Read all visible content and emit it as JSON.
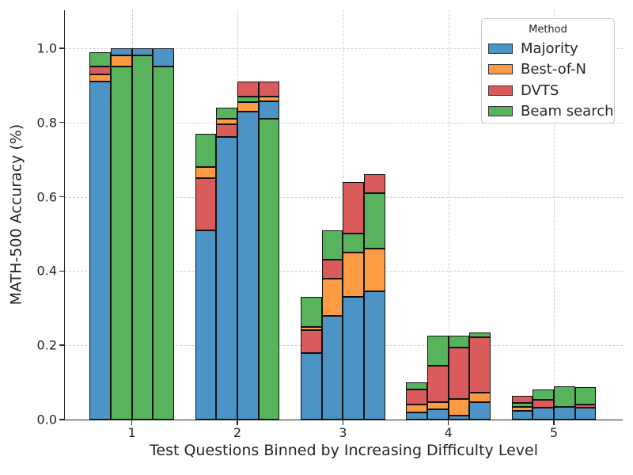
{
  "page": {
    "background": "#ffffff",
    "text_color": "#262626"
  },
  "chart_data": {
    "type": "bar",
    "subtype": "grouped bars, 4 overlaid method bars per bin shown as stacked color segments",
    "title": "",
    "xlabel": "Test Questions Binned by Increasing Difficulty Level",
    "ylabel": "MATH-500 Accuracy (%)",
    "x_axis": {
      "ticks": [
        "1",
        "2",
        "3",
        "4",
        "5"
      ]
    },
    "y_axis": {
      "lim": [
        0,
        1.102
      ],
      "ticks": [
        {
          "label": "0.0",
          "value": 0.0
        },
        {
          "label": "0.2",
          "value": 0.2
        },
        {
          "label": "0.4",
          "value": 0.4
        },
        {
          "label": "0.6",
          "value": 0.6
        },
        {
          "label": "0.8",
          "value": 0.8
        },
        {
          "label": "1.0",
          "value": 1.0
        }
      ]
    },
    "grid": {
      "show": true,
      "style": "dashed",
      "color": "#cfcfcf",
      "axes": "both"
    },
    "bar_edge_color": "#111111",
    "legend": {
      "title": "Method",
      "position": "upper-right",
      "entries": [
        {
          "label": "Majority",
          "color": "#4C94C6"
        },
        {
          "label": "Best-of-N",
          "color": "#FD9B44"
        },
        {
          "label": "DVTS",
          "color": "#DA5B5B"
        },
        {
          "label": "Beam search",
          "color": "#57B35C"
        }
      ]
    },
    "groups": [
      {
        "bin": "1",
        "bars": [
          {
            "segments": [
              {
                "method": "Majority",
                "from": 0,
                "to": 0.91
              },
              {
                "method": "Best-of-N",
                "from": 0.91,
                "to": 0.93
              },
              {
                "method": "DVTS",
                "from": 0.93,
                "to": 0.95
              },
              {
                "method": "Beam search",
                "from": 0.95,
                "to": 0.99
              }
            ]
          },
          {
            "segments": [
              {
                "method": "Beam search",
                "from": 0,
                "to": 0.95
              },
              {
                "method": "Best-of-N",
                "from": 0.95,
                "to": 0.98
              },
              {
                "method": "Majority",
                "from": 0.98,
                "to": 1.0
              }
            ]
          },
          {
            "segments": [
              {
                "method": "Beam search",
                "from": 0,
                "to": 0.98
              },
              {
                "method": "Majority",
                "from": 0.98,
                "to": 1.0
              }
            ]
          },
          {
            "segments": [
              {
                "method": "Beam search",
                "from": 0,
                "to": 0.95
              },
              {
                "method": "Majority",
                "from": 0.95,
                "to": 1.0
              }
            ]
          }
        ]
      },
      {
        "bin": "2",
        "bars": [
          {
            "segments": [
              {
                "method": "Majority",
                "from": 0,
                "to": 0.51
              },
              {
                "method": "DVTS",
                "from": 0.51,
                "to": 0.65
              },
              {
                "method": "Best-of-N",
                "from": 0.65,
                "to": 0.68
              },
              {
                "method": "Beam search",
                "from": 0.68,
                "to": 0.77
              }
            ]
          },
          {
            "segments": [
              {
                "method": "Majority",
                "from": 0,
                "to": 0.76
              },
              {
                "method": "DVTS",
                "from": 0.76,
                "to": 0.795
              },
              {
                "method": "Best-of-N",
                "from": 0.795,
                "to": 0.81
              },
              {
                "method": "Beam search",
                "from": 0.81,
                "to": 0.84
              }
            ]
          },
          {
            "segments": [
              {
                "method": "Majority",
                "from": 0,
                "to": 0.83
              },
              {
                "method": "Best-of-N",
                "from": 0.83,
                "to": 0.855
              },
              {
                "method": "Beam search",
                "from": 0.855,
                "to": 0.87
              },
              {
                "method": "DVTS",
                "from": 0.87,
                "to": 0.91
              }
            ]
          },
          {
            "segments": [
              {
                "method": "Beam search",
                "from": 0,
                "to": 0.81
              },
              {
                "method": "Majority",
                "from": 0.81,
                "to": 0.857
              },
              {
                "method": "Best-of-N",
                "from": 0.857,
                "to": 0.87
              },
              {
                "method": "DVTS",
                "from": 0.87,
                "to": 0.91
              }
            ]
          }
        ]
      },
      {
        "bin": "3",
        "bars": [
          {
            "segments": [
              {
                "method": "Majority",
                "from": 0,
                "to": 0.18
              },
              {
                "method": "DVTS",
                "from": 0.18,
                "to": 0.24
              },
              {
                "method": "Best-of-N",
                "from": 0.24,
                "to": 0.25
              },
              {
                "method": "Beam search",
                "from": 0.25,
                "to": 0.33
              }
            ]
          },
          {
            "segments": [
              {
                "method": "Majority",
                "from": 0,
                "to": 0.28
              },
              {
                "method": "Best-of-N",
                "from": 0.28,
                "to": 0.38
              },
              {
                "method": "DVTS",
                "from": 0.38,
                "to": 0.43
              },
              {
                "method": "Beam search",
                "from": 0.43,
                "to": 0.51
              }
            ]
          },
          {
            "segments": [
              {
                "method": "Majority",
                "from": 0,
                "to": 0.33
              },
              {
                "method": "Best-of-N",
                "from": 0.33,
                "to": 0.45
              },
              {
                "method": "Beam search",
                "from": 0.45,
                "to": 0.5
              },
              {
                "method": "DVTS",
                "from": 0.5,
                "to": 0.64
              }
            ]
          },
          {
            "segments": [
              {
                "method": "Majority",
                "from": 0,
                "to": 0.345
              },
              {
                "method": "Best-of-N",
                "from": 0.345,
                "to": 0.46
              },
              {
                "method": "Beam search",
                "from": 0.46,
                "to": 0.61
              },
              {
                "method": "DVTS",
                "from": 0.61,
                "to": 0.66
              }
            ]
          }
        ]
      },
      {
        "bin": "4",
        "bars": [
          {
            "segments": [
              {
                "method": "Majority",
                "from": 0,
                "to": 0.02
              },
              {
                "method": "Best-of-N",
                "from": 0.02,
                "to": 0.04
              },
              {
                "method": "DVTS",
                "from": 0.04,
                "to": 0.08
              },
              {
                "method": "Beam search",
                "from": 0.08,
                "to": 0.1
              }
            ]
          },
          {
            "segments": [
              {
                "method": "Majority",
                "from": 0,
                "to": 0.027
              },
              {
                "method": "Best-of-N",
                "from": 0.027,
                "to": 0.046
              },
              {
                "method": "DVTS",
                "from": 0.046,
                "to": 0.146
              },
              {
                "method": "Beam search",
                "from": 0.146,
                "to": 0.225
              }
            ]
          },
          {
            "segments": [
              {
                "method": "Majority",
                "from": 0,
                "to": 0.011
              },
              {
                "method": "Best-of-N",
                "from": 0.011,
                "to": 0.055
              },
              {
                "method": "DVTS",
                "from": 0.055,
                "to": 0.193
              },
              {
                "method": "Beam search",
                "from": 0.193,
                "to": 0.225
              }
            ]
          },
          {
            "segments": [
              {
                "method": "Majority",
                "from": 0,
                "to": 0.046
              },
              {
                "method": "Best-of-N",
                "from": 0.046,
                "to": 0.072
              },
              {
                "method": "DVTS",
                "from": 0.072,
                "to": 0.222
              },
              {
                "method": "Beam search",
                "from": 0.222,
                "to": 0.235
              }
            ]
          }
        ]
      },
      {
        "bin": "5",
        "bars": [
          {
            "segments": [
              {
                "method": "Majority",
                "from": 0,
                "to": 0.023
              },
              {
                "method": "Best-of-N",
                "from": 0.023,
                "to": 0.034
              },
              {
                "method": "Beam search",
                "from": 0.034,
                "to": 0.045
              },
              {
                "method": "DVTS",
                "from": 0.045,
                "to": 0.064
              }
            ]
          },
          {
            "segments": [
              {
                "method": "Majority",
                "from": 0,
                "to": 0.032
              },
              {
                "method": "DVTS",
                "from": 0.032,
                "to": 0.053
              },
              {
                "method": "Beam search",
                "from": 0.053,
                "to": 0.082
              }
            ]
          },
          {
            "segments": [
              {
                "method": "Majority",
                "from": 0,
                "to": 0.034
              },
              {
                "method": "Beam search",
                "from": 0.034,
                "to": 0.089
              }
            ]
          },
          {
            "segments": [
              {
                "method": "Majority",
                "from": 0,
                "to": 0.032
              },
              {
                "method": "DVTS",
                "from": 0.032,
                "to": 0.04
              },
              {
                "method": "Beam search",
                "from": 0.04,
                "to": 0.087
              }
            ]
          }
        ]
      }
    ]
  }
}
